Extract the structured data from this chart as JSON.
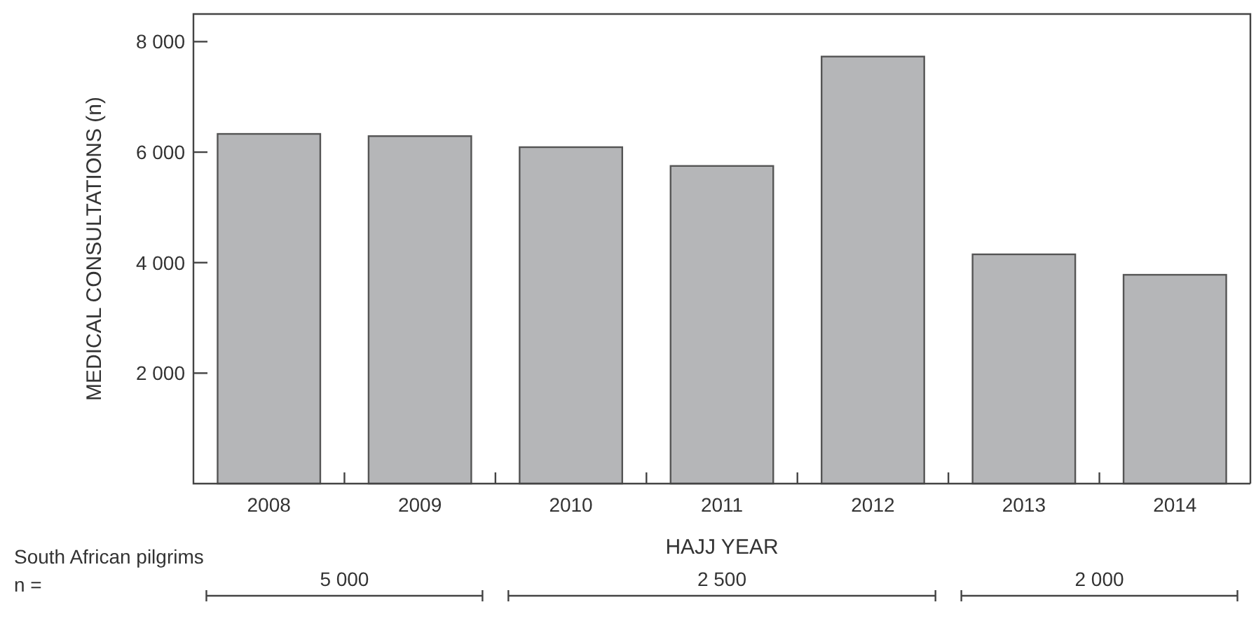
{
  "chart_data": {
    "type": "bar",
    "xlabel": "HAJJ YEAR",
    "ylabel": "MEDICAL CONSULTATIONS (n)",
    "categories": [
      "2008",
      "2009",
      "2010",
      "2011",
      "2012",
      "2013",
      "2014"
    ],
    "values": [
      6330,
      6290,
      6090,
      5750,
      7730,
      4150,
      3780
    ],
    "color": "#b5b6b8",
    "ylim": [
      0,
      8500
    ],
    "yticks": [
      {
        "value": 2000,
        "label": "2 000"
      },
      {
        "value": 4000,
        "label": "4 000"
      },
      {
        "value": 6000,
        "label": "6 000"
      },
      {
        "value": 8000,
        "label": "8 000"
      }
    ],
    "grid": false,
    "annotations": [
      "South African pilgrims n =",
      "5 000",
      "2 500",
      "2 000"
    ]
  }
}
